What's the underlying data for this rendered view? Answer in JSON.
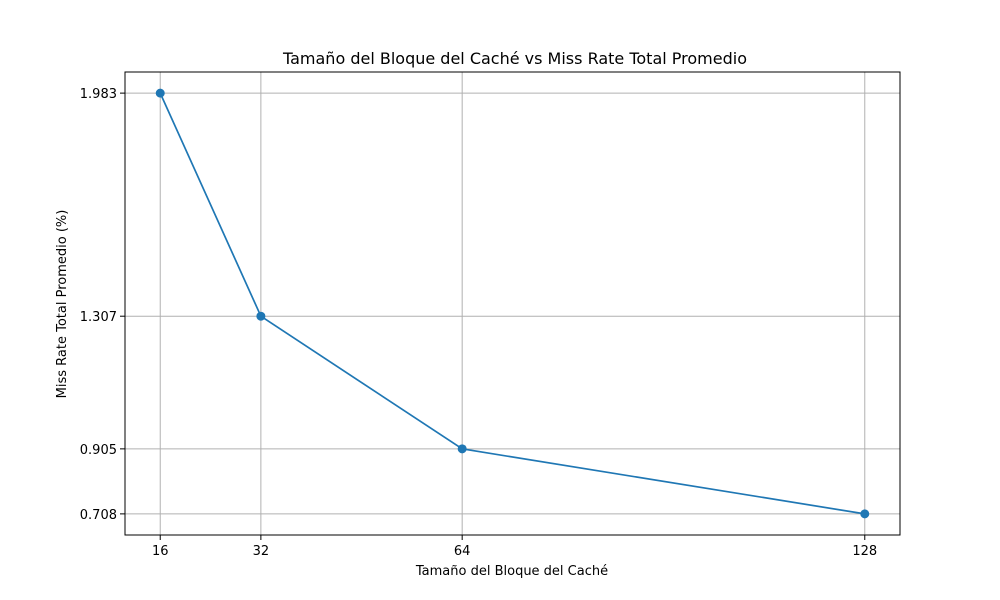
{
  "chart_data": {
    "type": "line",
    "title": "Tamaño del Bloque del Caché vs Miss Rate Total Promedio",
    "xlabel": "Tamaño del Bloque del Caché",
    "ylabel": "Miss Rate Total Promedio (%)",
    "x": [
      16,
      32,
      64,
      128
    ],
    "x_ticks": [
      "16",
      "32",
      "64",
      "128"
    ],
    "y_ticks": [
      "0.708",
      "0.905",
      "1.307",
      "1.983"
    ],
    "series": [
      {
        "values": [
          1.983,
          1.307,
          0.905,
          0.708
        ],
        "color": "#1f77b4",
        "marker": "circle"
      }
    ],
    "xlim": [
      10.4,
      133.6
    ],
    "ylim": [
      0.644,
      2.047
    ],
    "grid": true,
    "legend": "none"
  }
}
